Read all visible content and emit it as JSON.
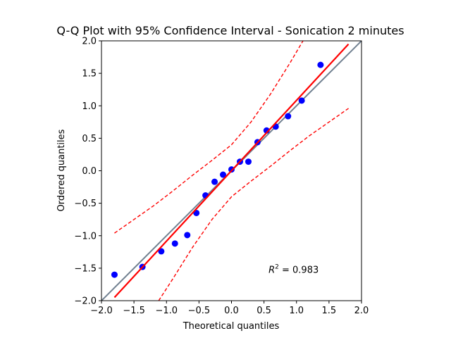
{
  "chart_data": {
    "type": "scatter",
    "title": "Q-Q Plot with 95% Confidence Interval - Sonication 2 minutes",
    "xlabel": "Theoretical quantiles",
    "ylabel": "Ordered quantiles",
    "xlim": [
      -2.0,
      2.0
    ],
    "ylim": [
      -2.0,
      2.0
    ],
    "xticks": [
      "−2.0",
      "−1.5",
      "−1.0",
      "−0.5",
      "0.0",
      "0.5",
      "1.0",
      "1.5",
      "2.0"
    ],
    "yticks": [
      "−2.0",
      "−1.5",
      "−1.0",
      "−0.5",
      "0.0",
      "0.5",
      "1.0",
      "1.5",
      "2.0"
    ],
    "grid": false,
    "annotation": {
      "text": "R² = 0.983",
      "x": 0.57,
      "y": -1.57
    },
    "points": {
      "color": "#0000ff",
      "x": [
        -1.8,
        -1.37,
        -1.08,
        -0.87,
        -0.68,
        -0.54,
        -0.4,
        -0.26,
        -0.13,
        0.0,
        0.13,
        0.26,
        0.4,
        0.54,
        0.68,
        0.87,
        1.08,
        1.37
      ],
      "y": [
        -1.6,
        -1.48,
        -1.24,
        -1.12,
        -0.99,
        -0.65,
        -0.38,
        -0.17,
        -0.06,
        0.02,
        0.14,
        0.14,
        0.44,
        0.62,
        0.68,
        0.84,
        1.08,
        1.63
      ]
    },
    "reference_line": {
      "color": "#708090",
      "x": [
        -2.0,
        2.0
      ],
      "y": [
        -2.0,
        2.0
      ]
    },
    "fit_line": {
      "color": "#ff0000",
      "x": [
        -1.8,
        1.8
      ],
      "y": [
        -1.95,
        1.95
      ]
    },
    "ci_upper": {
      "color": "#ff0000",
      "x": [
        -1.8,
        -1.5,
        -1.2,
        -0.9,
        -0.6,
        -0.3,
        0.0,
        0.3,
        0.6,
        0.9,
        1.1
      ],
      "y": [
        -0.96,
        -0.75,
        -0.54,
        -0.31,
        -0.07,
        0.16,
        0.4,
        0.75,
        1.18,
        1.66,
        2.0
      ]
    },
    "ci_lower": {
      "color": "#ff0000",
      "x": [
        -1.12,
        -0.9,
        -0.6,
        -0.3,
        0.0,
        0.3,
        0.6,
        0.9,
        1.2,
        1.5,
        1.8
      ],
      "y": [
        -2.0,
        -1.66,
        -1.18,
        -0.75,
        -0.4,
        -0.16,
        0.07,
        0.31,
        0.54,
        0.75,
        0.96
      ]
    }
  }
}
